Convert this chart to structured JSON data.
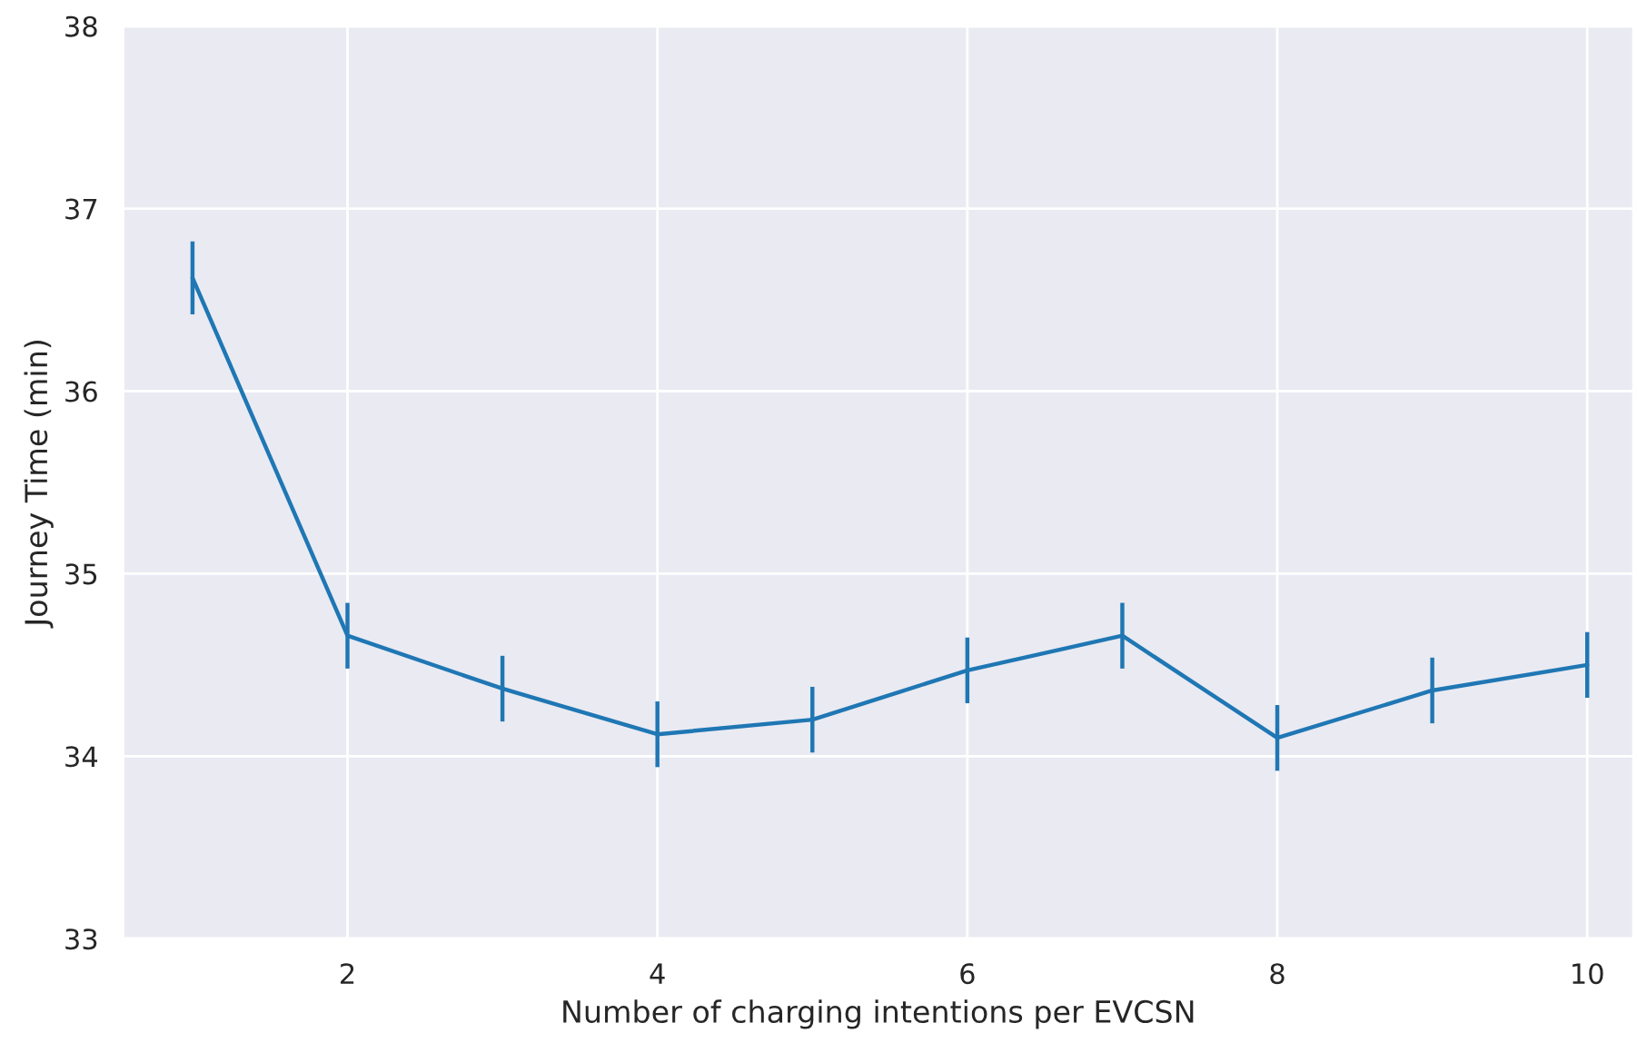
{
  "chart_data": {
    "type": "line",
    "xlabel": "Number of charging intentions per EVCSN",
    "ylabel": "Journey Time (min)",
    "x": [
      1,
      2,
      3,
      4,
      5,
      6,
      7,
      8,
      9,
      10
    ],
    "series": [
      {
        "color": "#1f77b4",
        "values": [
          36.62,
          34.66,
          34.37,
          34.12,
          34.2,
          34.47,
          34.66,
          34.1,
          34.36,
          34.5
        ],
        "errors": [
          0.2,
          0.18,
          0.18,
          0.18,
          0.18,
          0.18,
          0.18,
          0.18,
          0.18,
          0.18
        ]
      }
    ],
    "xlim": [
      0.55,
      10.3
    ],
    "xticks": [
      2,
      4,
      6,
      8,
      10
    ],
    "ylim": [
      33,
      38
    ],
    "yticks": [
      33,
      34,
      35,
      36,
      37,
      38
    ],
    "grid": true
  }
}
